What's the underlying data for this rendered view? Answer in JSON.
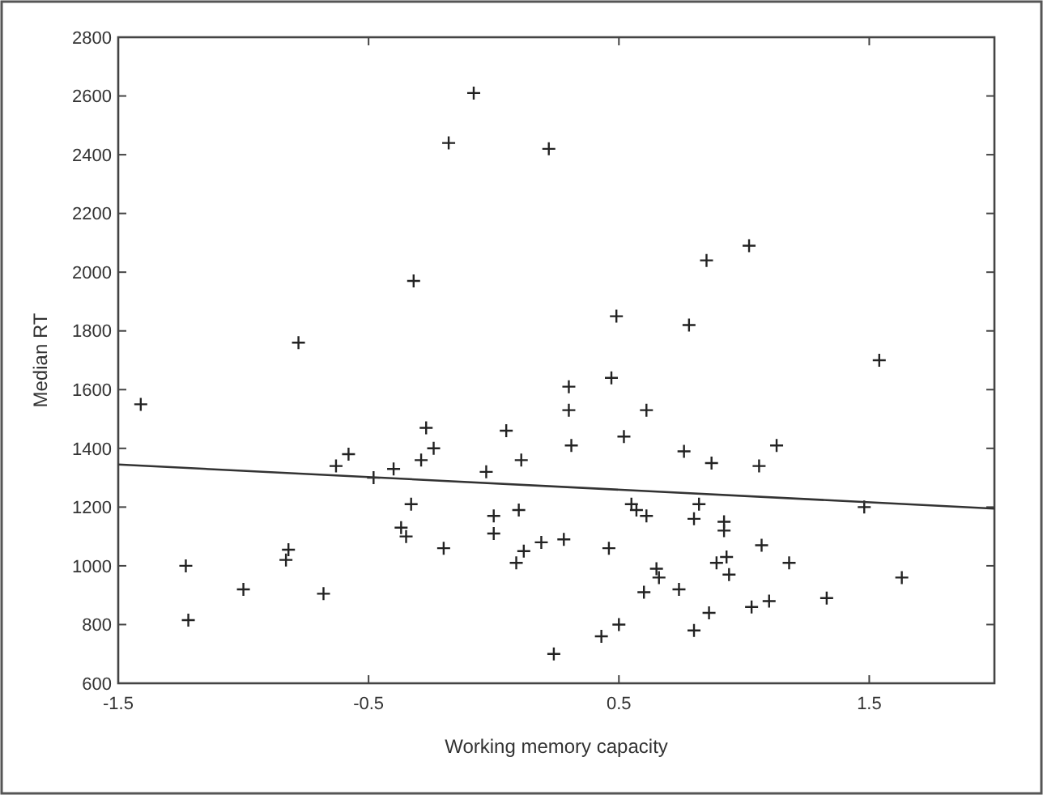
{
  "chart_data": {
    "type": "scatter",
    "xlabel": "Working memory capacity",
    "ylabel": "Median RT",
    "xlim": [
      -1.5,
      2
    ],
    "xticks": [
      -1.5,
      -0.5,
      0.5,
      1.5
    ],
    "ylim": [
      600,
      2800
    ],
    "yticks": [
      600,
      800,
      1000,
      1200,
      1400,
      1600,
      1800,
      2000,
      2200,
      2400,
      2600,
      2800
    ],
    "grid": false,
    "series": [
      {
        "marker": "cross",
        "color": "#222222",
        "x": [
          -1.41,
          -1.23,
          -1.22,
          -1.0,
          -0.83,
          -0.82,
          -0.78,
          -0.68,
          -0.63,
          -0.58,
          -0.48,
          -0.4,
          -0.37,
          -0.35,
          -0.33,
          -0.32,
          -0.29,
          -0.27,
          -0.24,
          -0.2,
          -0.18,
          -0.08,
          -0.03,
          0.0,
          0.0,
          0.05,
          0.09,
          0.1,
          0.11,
          0.12,
          0.19,
          0.22,
          0.24,
          0.28,
          0.3,
          0.3,
          0.31,
          0.43,
          0.46,
          0.47,
          0.49,
          0.5,
          0.52,
          0.55,
          0.57,
          0.61,
          0.6,
          0.61,
          0.65,
          0.66,
          0.74,
          0.76,
          0.78,
          0.8,
          0.8,
          0.82,
          0.85,
          0.86,
          0.87,
          0.89,
          0.92,
          0.92,
          0.93,
          0.94,
          1.02,
          1.03,
          1.06,
          1.07,
          1.1,
          1.13,
          1.18,
          1.33,
          1.48,
          1.54,
          1.63
        ],
        "values": [
          1550,
          1000,
          815,
          920,
          1020,
          1055,
          1760,
          905,
          1340,
          1380,
          1300,
          1330,
          1130,
          1100,
          1210,
          1970,
          1360,
          1470,
          1400,
          1060,
          2440,
          2610,
          1320,
          1170,
          1110,
          1460,
          1010,
          1190,
          1360,
          1050,
          1080,
          2420,
          700,
          1090,
          1610,
          1530,
          1410,
          760,
          1060,
          1640,
          1850,
          800,
          1440,
          1210,
          1190,
          1530,
          910,
          1170,
          990,
          960,
          920,
          1390,
          1820,
          780,
          1160,
          1210,
          2040,
          840,
          1350,
          1010,
          1150,
          1120,
          1030,
          970,
          2090,
          860,
          1340,
          1070,
          880,
          1410,
          1010,
          890,
          1200,
          1700,
          960
        ]
      },
      {
        "type": "line",
        "marker": "none",
        "color": "#333333",
        "x": [
          -1.5,
          2
        ],
        "values": [
          1345,
          1195
        ]
      }
    ]
  }
}
